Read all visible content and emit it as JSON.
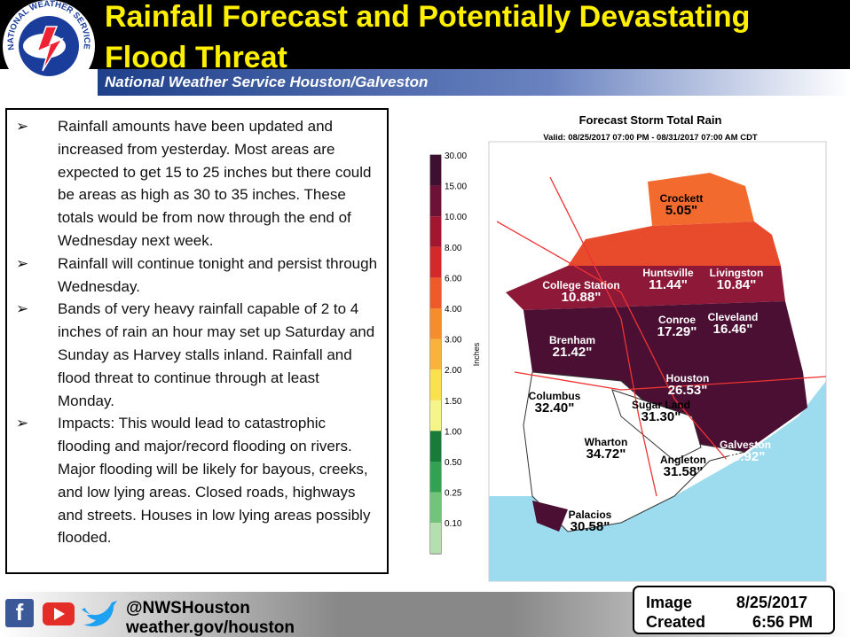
{
  "header": {
    "title": "Rainfall Forecast and Potentially Devastating Flood Threat",
    "subtitle": "National Weather Service Houston/Galveston",
    "logo_text": "NATIONAL WEATHER SERVICE"
  },
  "bullets": [
    "Rainfall amounts have been updated and increased from yesterday. Most areas are expected to get 15 to 25 inches but there could be areas as high as 30 to 35 inches. These totals would be from now through the end of Wednesday next week.",
    "Rainfall will continue tonight and persist through Wednesday.",
    "Bands of very heavy rainfall capable of 2 to 4 inches of rain an hour may set up Saturday and Sunday as Harvey stalls inland. Rainfall and flood threat to continue through at least Monday.",
    "Impacts: This would lead to catastrophic flooding and major/record flooding on rivers. Major flooding will be likely for bayous, creeks, and low lying areas. Closed roads, highways and streets. Houses in low lying areas possibly flooded."
  ],
  "map": {
    "title": "Forecast Storm Total Rain",
    "valid": "Valid: 08/25/2017 07:00 PM - 08/31/2017 07:00 AM CDT",
    "legend_label": "Inches",
    "legend_ticks": [
      "30.00",
      "15.00",
      "10.00",
      "8.00",
      "6.00",
      "4.00",
      "3.00",
      "2.00",
      "1.50",
      "1.00",
      "0.50",
      "0.25",
      "0.10"
    ],
    "cities": [
      {
        "name": "Crockett",
        "value": "5.05\""
      },
      {
        "name": "Huntsville",
        "value": "11.44\""
      },
      {
        "name": "Livingston",
        "value": "10.84\""
      },
      {
        "name": "College Station",
        "value": "10.88\""
      },
      {
        "name": "Conroe",
        "value": "17.29\""
      },
      {
        "name": "Cleveland",
        "value": "16.46\""
      },
      {
        "name": "Brenham",
        "value": "21.42\""
      },
      {
        "name": "Houston",
        "value": "26.53\""
      },
      {
        "name": "Columbus",
        "value": "32.40\""
      },
      {
        "name": "Sugar Land",
        "value": "31.30\""
      },
      {
        "name": "Wharton",
        "value": "34.72\""
      },
      {
        "name": "Galveston",
        "value": "26.92\""
      },
      {
        "name": "Angleton",
        "value": "31.58\""
      },
      {
        "name": "Palacios",
        "value": "30.58\""
      }
    ]
  },
  "footer": {
    "handle": "@NWSHouston",
    "website": "weather.gov/houston",
    "image_label": "Image",
    "created_label": "Created",
    "date": "8/25/2017",
    "time": "6:56 PM"
  }
}
